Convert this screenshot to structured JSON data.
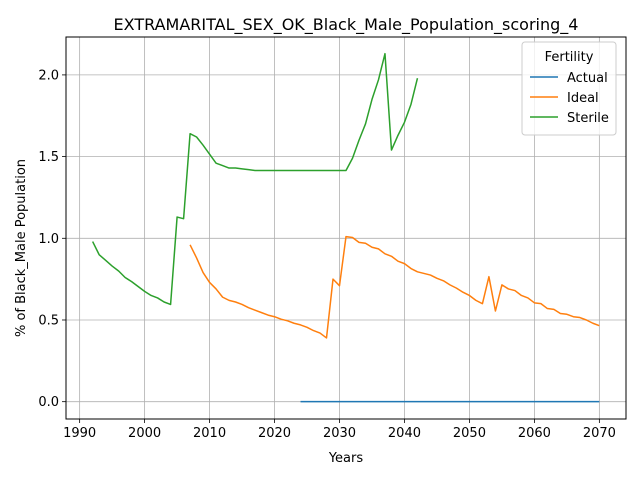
{
  "chart_data": {
    "type": "line",
    "title": "EXTRAMARITAL_SEX_OK_Black_Male_Population_scoring_4",
    "xlabel": "Years",
    "ylabel": "% of Black_Male Population",
    "xlim": [
      1987.9,
      2074.1
    ],
    "ylim": [
      -0.106,
      2.232
    ],
    "xticks": [
      1990,
      2000,
      2010,
      2020,
      2030,
      2040,
      2050,
      2060,
      2070
    ],
    "yticks": [
      0.0,
      0.5,
      1.0,
      1.5,
      2.0
    ],
    "ytick_labels": [
      "0.0",
      "0.5",
      "1.0",
      "1.5",
      "2.0"
    ],
    "grid": true,
    "legend": {
      "title": "Fertility",
      "position": "top-right"
    },
    "series": [
      {
        "name": "Actual",
        "color": "#1f77b4",
        "x": [
          2024,
          2030,
          2040,
          2050,
          2060,
          2070
        ],
        "y": [
          0.0,
          0.0,
          0.0,
          0.0,
          0.0,
          0.0
        ]
      },
      {
        "name": "Ideal",
        "color": "#ff7f0e",
        "x": [
          2007,
          2008,
          2009,
          2010,
          2011,
          2012,
          2013,
          2014,
          2015,
          2016,
          2017,
          2018,
          2019,
          2020,
          2021,
          2022,
          2023,
          2024,
          2025,
          2026,
          2027,
          2028,
          2029,
          2030,
          2031,
          2032,
          2033,
          2034,
          2035,
          2036,
          2037,
          2038,
          2039,
          2040,
          2041,
          2042,
          2043,
          2044,
          2045,
          2046,
          2047,
          2048,
          2049,
          2050,
          2051,
          2052,
          2053,
          2054,
          2055,
          2056,
          2057,
          2058,
          2059,
          2060,
          2061,
          2062,
          2063,
          2064,
          2065,
          2066,
          2067,
          2068,
          2069,
          2070
        ],
        "y": [
          0.96,
          0.88,
          0.79,
          0.73,
          0.69,
          0.64,
          0.62,
          0.61,
          0.595,
          0.575,
          0.56,
          0.545,
          0.53,
          0.52,
          0.505,
          0.495,
          0.48,
          0.47,
          0.455,
          0.435,
          0.42,
          0.39,
          0.75,
          0.71,
          1.01,
          1.005,
          0.975,
          0.97,
          0.945,
          0.935,
          0.905,
          0.89,
          0.86,
          0.845,
          0.815,
          0.795,
          0.785,
          0.775,
          0.755,
          0.74,
          0.715,
          0.695,
          0.67,
          0.65,
          0.62,
          0.6,
          0.765,
          0.555,
          0.715,
          0.69,
          0.68,
          0.65,
          0.635,
          0.605,
          0.6,
          0.57,
          0.565,
          0.54,
          0.535,
          0.52,
          0.515,
          0.5,
          0.48,
          0.465
        ]
      },
      {
        "name": "Sterile",
        "color": "#2ca02c",
        "x": [
          1992,
          1993,
          1994,
          1995,
          1996,
          1997,
          1998,
          1999,
          2000,
          2001,
          2002,
          2003,
          2004,
          2005,
          2006,
          2007,
          2008,
          2009,
          2010,
          2011,
          2012,
          2013,
          2014,
          2015,
          2016,
          2017,
          2018,
          2019,
          2020,
          2021,
          2022,
          2023,
          2024,
          2025,
          2026,
          2027,
          2028,
          2029,
          2030,
          2031,
          2032,
          2033,
          2034,
          2035,
          2036,
          2037,
          2038,
          2039,
          2040,
          2041,
          2042
        ],
        "y": [
          0.98,
          0.9,
          0.865,
          0.83,
          0.8,
          0.76,
          0.735,
          0.705,
          0.675,
          0.65,
          0.635,
          0.61,
          0.595,
          1.13,
          1.12,
          1.64,
          1.62,
          1.57,
          1.515,
          1.46,
          1.445,
          1.43,
          1.43,
          1.425,
          1.42,
          1.415,
          1.415,
          1.415,
          1.415,
          1.415,
          1.415,
          1.415,
          1.415,
          1.415,
          1.415,
          1.415,
          1.415,
          1.415,
          1.415,
          1.415,
          1.49,
          1.6,
          1.7,
          1.85,
          1.97,
          2.13,
          1.54,
          1.63,
          1.71,
          1.82,
          1.98
        ]
      }
    ]
  }
}
